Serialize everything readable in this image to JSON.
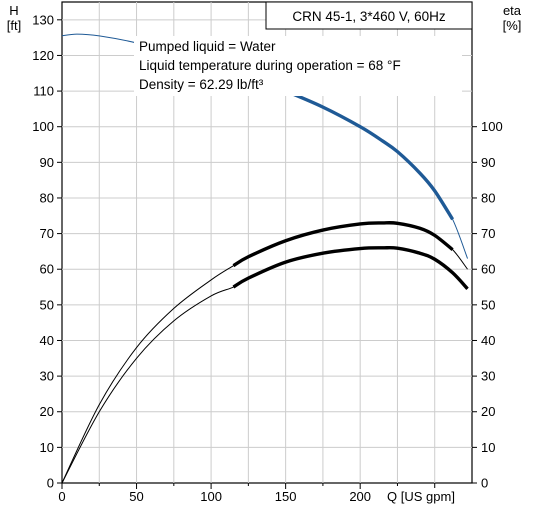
{
  "chart_data": {
    "type": "line",
    "legend_box": "CRN 45-1, 3*460 V, 60Hz",
    "info_lines": [
      "Pumped liquid = Water",
      "Liquid temperature during operation = 68 °F",
      "Density = 62.29 lb/ft³"
    ],
    "y_left": {
      "unit_line1": "H",
      "unit_line2": "[ft]",
      "ticks": [
        0,
        10,
        20,
        30,
        40,
        50,
        60,
        70,
        80,
        90,
        100,
        110,
        120,
        130
      ],
      "range": [
        0,
        135
      ]
    },
    "y_right": {
      "unit_line1": "eta",
      "unit_line2": "[%]",
      "ticks": [
        0,
        10,
        20,
        30,
        40,
        50,
        60,
        70,
        80,
        90,
        100
      ]
    },
    "x": {
      "label": "Q [US gpm]",
      "ticks": [
        0,
        50,
        100,
        150,
        200
      ],
      "range": [
        0,
        275
      ]
    },
    "grid": true,
    "series": [
      {
        "kind": "head",
        "color": "#1f5a96",
        "operating_range": [
          115,
          262
        ],
        "points": [
          [
            0,
            125.5
          ],
          [
            10,
            126
          ],
          [
            25,
            125.5
          ],
          [
            50,
            123.5
          ],
          [
            75,
            120.5
          ],
          [
            100,
            117.5
          ],
          [
            115,
            115.5
          ],
          [
            125,
            114
          ],
          [
            150,
            110
          ],
          [
            175,
            105.5
          ],
          [
            200,
            100
          ],
          [
            215,
            96
          ],
          [
            225,
            93
          ],
          [
            240,
            87
          ],
          [
            250,
            82
          ],
          [
            262,
            74
          ],
          [
            272,
            63
          ]
        ]
      },
      {
        "kind": "efficiency",
        "color": "#000000",
        "operating_range": [
          115,
          262
        ],
        "points": [
          [
            0,
            0
          ],
          [
            25,
            22
          ],
          [
            50,
            38
          ],
          [
            75,
            49
          ],
          [
            100,
            57
          ],
          [
            115,
            61
          ],
          [
            125,
            63.5
          ],
          [
            150,
            68
          ],
          [
            175,
            71
          ],
          [
            200,
            72.7
          ],
          [
            215,
            73
          ],
          [
            225,
            72.9
          ],
          [
            240,
            71.5
          ],
          [
            250,
            69.5
          ],
          [
            262,
            65.5
          ],
          [
            272,
            60
          ]
        ]
      },
      {
        "kind": "efficiency",
        "color": "#000000",
        "operating_range": [
          115,
          272
        ],
        "points": [
          [
            0,
            0
          ],
          [
            25,
            20
          ],
          [
            50,
            35
          ],
          [
            75,
            45.5
          ],
          [
            100,
            52.5
          ],
          [
            115,
            55
          ],
          [
            125,
            57.5
          ],
          [
            150,
            62
          ],
          [
            175,
            64.5
          ],
          [
            200,
            65.8
          ],
          [
            215,
            66
          ],
          [
            225,
            65.9
          ],
          [
            240,
            64.5
          ],
          [
            250,
            62.8
          ],
          [
            262,
            59
          ],
          [
            272,
            54.5
          ]
        ]
      }
    ]
  }
}
